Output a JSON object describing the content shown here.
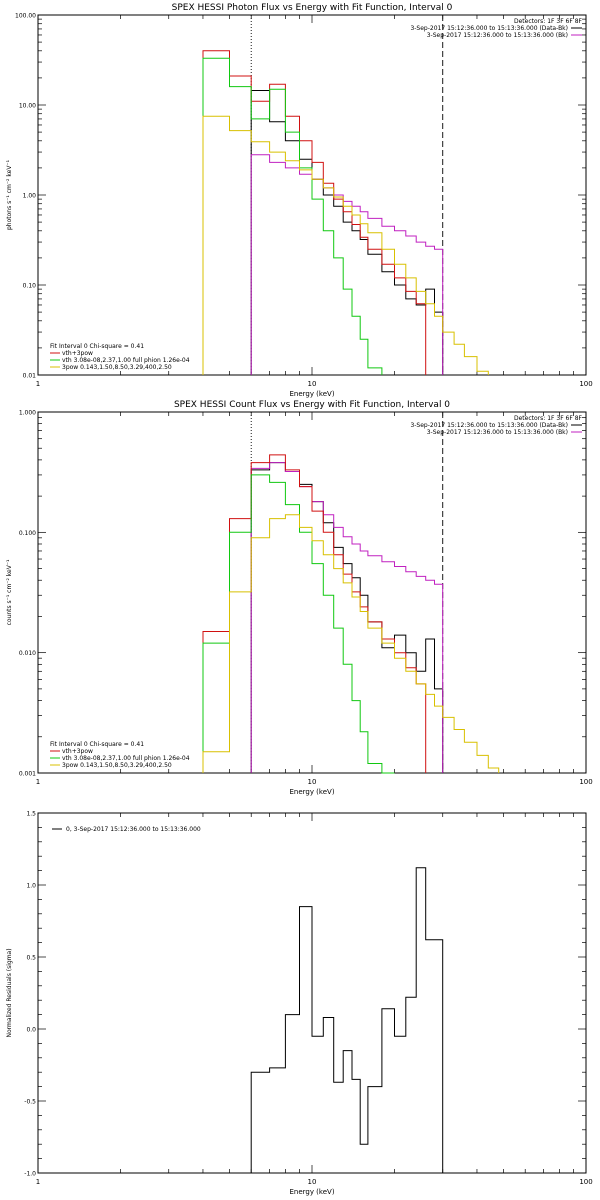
{
  "chart_data": [
    {
      "type": "line",
      "title": "SPEX HESSI Photon Flux vs Energy with Fit Function, Interval 0",
      "xlabel": "Energy (keV)",
      "ylabel": "photons s⁻¹ cm⁻² keV⁻¹",
      "xscale": "log",
      "yscale": "log",
      "xlim": [
        1,
        100
      ],
      "ylim": [
        0.01,
        100
      ],
      "x_ticks": [
        1,
        10,
        100
      ],
      "x_tick_labels": [
        "1",
        "10",
        "100"
      ],
      "y_ticks": [
        0.01,
        0.1,
        1,
        10,
        100
      ],
      "y_tick_labels": [
        "0.01",
        "0.10",
        "1.00",
        "10.00",
        "100.00"
      ],
      "legend_top_right": [
        {
          "text": "Detectors: 1F 3F 6F 8F",
          "color": ""
        },
        {
          "text": "3-Sep-2017 15:12:36.000 to 15:13:36.000 (Data-Bk)",
          "color": "#000000"
        },
        {
          "text": "3-Sep-2017 15:12:36.000 to 15:13:36.000 (Bk)",
          "color": "#c020c0"
        }
      ],
      "legend_bottom_left": [
        {
          "text": "Fit Interval 0   Chi-square = 0.41",
          "color": ""
        },
        {
          "text": "vth+3pow",
          "color": "#d01010"
        },
        {
          "text": "vth 3.08e-08,2.37,1.00  full phion 1.26e-04",
          "color": "#10c810"
        },
        {
          "text": "3pow 0.143,1.50,8.50,3.29,400,2.50",
          "color": "#d8c000"
        }
      ],
      "vlines": [
        {
          "x": 6,
          "style": "dotted"
        },
        {
          "x": 30,
          "style": "dashed"
        }
      ],
      "edges": [
        4.0,
        5.0,
        6.0,
        7.0,
        8.0,
        9.0,
        10.0,
        11.0,
        12.0,
        13.0,
        14.0,
        15.0,
        16.0,
        18.0,
        20.0,
        22.0,
        24.0,
        26.0,
        28.0,
        30.0,
        33.0,
        36.0,
        40.0,
        44.0
      ],
      "series": [
        {
          "name": "",
          "color": "#000000",
          "range": [
            2,
            20
          ],
          "values": [
            14.5,
            6.5,
            4.0,
            2.5,
            1.5,
            1.0,
            0.75,
            0.5,
            0.4,
            0.32,
            0.22,
            0.14,
            0.1,
            0.07,
            0.06,
            0.09,
            0.05
          ]
        },
        {
          "name": "",
          "color": "#c020c0",
          "range": [
            2,
            20
          ],
          "values": [
            2.8,
            2.3,
            2.0,
            1.7,
            1.5,
            1.2,
            1.0,
            0.85,
            0.75,
            0.65,
            0.55,
            0.45,
            0.4,
            0.35,
            0.3,
            0.27,
            0.25
          ]
        },
        {
          "name": "vth+3pow",
          "color": "#d01010",
          "range": [
            0,
            20
          ],
          "values": [
            40,
            21,
            11,
            17,
            7.5,
            4.0,
            2.3,
            1.35,
            0.9,
            0.65,
            0.47,
            0.34,
            0.25,
            0.17,
            0.12,
            0.085,
            0.062
          ]
        },
        {
          "name": "vth",
          "color": "#10c810",
          "range": [
            0,
            17
          ],
          "values": [
            33,
            16,
            7,
            15,
            5.0,
            2.0,
            0.9,
            0.4,
            0.2,
            0.09,
            0.045,
            0.025,
            0.012
          ]
        },
        {
          "name": "3pow",
          "color": "#d8c000",
          "range": [
            0,
            23
          ],
          "values": [
            7.5,
            5.2,
            3.9,
            3.0,
            2.4,
            1.9,
            1.5,
            1.2,
            0.95,
            0.75,
            0.6,
            0.48,
            0.38,
            0.25,
            0.17,
            0.12,
            0.085,
            0.062,
            0.045,
            0.03,
            0.022,
            0.016,
            0.011
          ]
        }
      ]
    },
    {
      "type": "line",
      "title": "SPEX HESSI Count Flux vs Energy with Fit Function, Interval 0",
      "xlabel": "Energy (keV)",
      "ylabel": "counts s⁻¹ cm⁻² keV⁻¹",
      "xscale": "log",
      "yscale": "log",
      "xlim": [
        1,
        100
      ],
      "ylim": [
        0.001,
        1
      ],
      "x_ticks": [
        1,
        10,
        100
      ],
      "x_tick_labels": [
        "1",
        "10",
        "100"
      ],
      "y_ticks": [
        0.001,
        0.01,
        0.1,
        1
      ],
      "y_tick_labels": [
        "0.001",
        "0.010",
        "0.100",
        "1.000"
      ],
      "legend_top_right": [
        {
          "text": "Detectors: 1F 3F 6F 8F",
          "color": ""
        },
        {
          "text": "3-Sep-2017 15:12:36.000 to 15:13:36.000 (Data-Bk)",
          "color": "#000000"
        },
        {
          "text": "3-Sep-2017 15:12:36.000 to 15:13:36.000 (Bk)",
          "color": "#c020c0"
        }
      ],
      "legend_bottom_left": [
        {
          "text": "Fit Interval 0   Chi-square = 0.41",
          "color": ""
        },
        {
          "text": "vth+3pow",
          "color": "#d01010"
        },
        {
          "text": "vth 3.08e-08,2.37,1.00  full phion 1.26e-04",
          "color": "#10c810"
        },
        {
          "text": "3pow 0.143,1.50,8.50,3.29,400,2.50",
          "color": "#d8c000"
        }
      ],
      "vlines": [
        {
          "x": 6,
          "style": "dotted"
        },
        {
          "x": 30,
          "style": "dashed"
        }
      ],
      "edges": [
        4.0,
        5.0,
        6.0,
        7.0,
        8.0,
        9.0,
        10.0,
        11.0,
        12.0,
        13.0,
        14.0,
        15.0,
        16.0,
        18.0,
        20.0,
        22.0,
        24.0,
        26.0,
        28.0,
        30.0,
        33.0,
        36.0,
        40.0,
        44.0,
        48.0
      ],
      "series": [
        {
          "name": "",
          "color": "#000000",
          "range": [
            2,
            20
          ],
          "values": [
            0.33,
            0.38,
            0.32,
            0.25,
            0.18,
            0.12,
            0.075,
            0.055,
            0.042,
            0.03,
            0.018,
            0.011,
            0.014,
            0.01,
            0.007,
            0.013,
            0.005
          ]
        },
        {
          "name": "",
          "color": "#c020c0",
          "range": [
            2,
            20
          ],
          "values": [
            0.34,
            0.38,
            0.32,
            0.24,
            0.18,
            0.14,
            0.11,
            0.092,
            0.08,
            0.07,
            0.064,
            0.057,
            0.052,
            0.047,
            0.043,
            0.04,
            0.037
          ]
        },
        {
          "name": "vth+3pow",
          "color": "#d01010",
          "range": [
            0,
            20
          ],
          "values": [
            0.015,
            0.13,
            0.38,
            0.44,
            0.33,
            0.24,
            0.15,
            0.1,
            0.065,
            0.045,
            0.032,
            0.024,
            0.018,
            0.013,
            0.01,
            0.0075,
            0.0055
          ]
        },
        {
          "name": "vth",
          "color": "#10c810",
          "range": [
            0,
            18
          ],
          "values": [
            0.012,
            0.1,
            0.3,
            0.26,
            0.17,
            0.1,
            0.055,
            0.03,
            0.016,
            0.008,
            0.004,
            0.0022,
            0.0012,
            0.0006
          ]
        },
        {
          "name": "3pow",
          "color": "#d8c000",
          "range": [
            0,
            24
          ],
          "values": [
            0.0015,
            0.032,
            0.09,
            0.13,
            0.14,
            0.11,
            0.085,
            0.065,
            0.05,
            0.038,
            0.029,
            0.022,
            0.016,
            0.012,
            0.009,
            0.007,
            0.0055,
            0.0045,
            0.0036,
            0.0029,
            0.0023,
            0.0018,
            0.0014,
            0.0011
          ]
        }
      ]
    },
    {
      "type": "line",
      "title": "",
      "xlabel": "Energy (keV)",
      "ylabel": "Normalized Residuals (sigma)",
      "xscale": "log",
      "yscale": "linear",
      "xlim": [
        1,
        100
      ],
      "ylim": [
        -1,
        1.5
      ],
      "x_ticks": [
        1,
        10,
        100
      ],
      "x_tick_labels": [
        "1",
        "10",
        "100"
      ],
      "y_ticks": [
        -1,
        -0.5,
        0,
        0.5,
        1,
        1.5
      ],
      "y_tick_labels": [
        "-1.0",
        "-0.5",
        "0.0",
        "0.5",
        "1.0",
        "1.5"
      ],
      "legend_top_left": [
        {
          "text": "0, 3-Sep-2017 15:12:36.000 to 15:13:36.000",
          "color": "#000000"
        }
      ],
      "edges": [
        6.0,
        7.0,
        8.0,
        9.0,
        10.0,
        11.0,
        12.0,
        13.0,
        14.0,
        15.0,
        16.0,
        18.0,
        20.0,
        22.0,
        24.0,
        26.0,
        28.0,
        30.0
      ],
      "series": [
        {
          "name": "",
          "color": "#000000",
          "range": [
            0,
            17
          ],
          "values": [
            -0.3,
            -0.27,
            0.1,
            0.85,
            -0.05,
            0.08,
            -0.37,
            -0.15,
            -0.35,
            -0.8,
            -0.4,
            0.14,
            -0.05,
            0.22,
            1.12,
            0.62,
            0.62
          ]
        }
      ]
    }
  ]
}
